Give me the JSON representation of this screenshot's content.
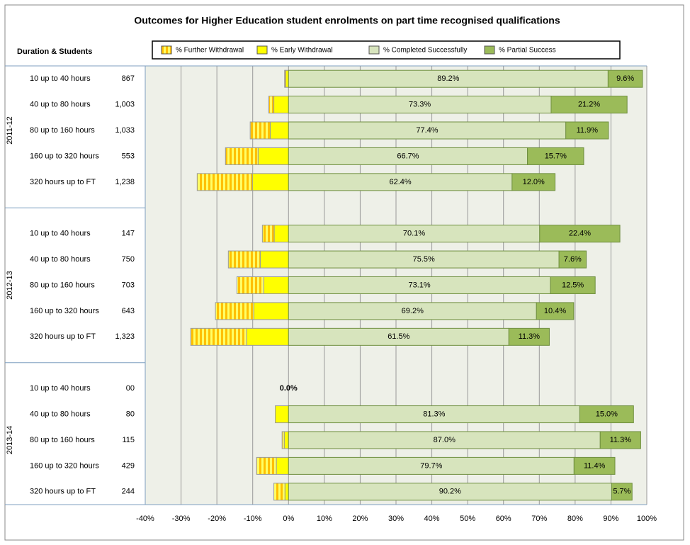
{
  "chart_data": {
    "type": "diverging-stacked-bar",
    "title": "Outcomes for Higher Education student enrolments on part time recognised qualifications",
    "row_header": "Duration & Students",
    "groups": [
      {
        "name": "2011-12",
        "categories": [
          "10 up to 40 hours",
          "40 up to 80 hours",
          "80 up to 160 hours",
          "160 up to 320 hours",
          "320 hours up to FT"
        ],
        "students": [
          "867",
          "1,003",
          "1,033",
          "553",
          "1,238"
        ]
      },
      {
        "name": "2012-13",
        "categories": [
          "10 up to 40 hours",
          "40 up to 80 hours",
          "80 up to 160 hours",
          "160 up to 320 hours",
          "320 hours up to FT"
        ],
        "students": [
          "147",
          "750",
          "703",
          "643",
          "1,323"
        ]
      },
      {
        "name": "2013-14",
        "categories": [
          "10 up to 40 hours",
          "40 up to 80 hours",
          "80 up to 160 hours",
          "160 up to 320 hours",
          "320 hours up to FT"
        ],
        "students": [
          "00",
          "80",
          "115",
          "429",
          "244"
        ]
      }
    ],
    "series": [
      {
        "name": "% Further Withdrawal",
        "color": "#FFC000",
        "pattern": "stripes",
        "values": [
          -0.3,
          -1.4,
          -5.6,
          -9.1,
          -15.4,
          -3.3,
          -8.9,
          -7.5,
          -10.7,
          -15.6,
          0,
          0,
          -0.6,
          -5.5,
          -3.1
        ]
      },
      {
        "name": "% Early Withdrawal",
        "color": "#FFFF00",
        "values": [
          -0.8,
          -4.1,
          -5.1,
          -8.5,
          -10.1,
          -4.0,
          -7.9,
          -6.9,
          -9.7,
          -11.7,
          0,
          -3.7,
          -1.2,
          -3.4,
          -1.0
        ]
      },
      {
        "name": "% Completed Successfully",
        "color": "#D7E4BD",
        "values": [
          89.2,
          73.3,
          77.4,
          66.7,
          62.4,
          70.1,
          75.5,
          73.1,
          69.2,
          61.5,
          0.0,
          81.3,
          87.0,
          79.7,
          90.2
        ],
        "value_labels": [
          "89.2%",
          "73.3%",
          "77.4%",
          "66.7%",
          "62.4%",
          "70.1%",
          "75.5%",
          "73.1%",
          "69.2%",
          "61.5%",
          "0.0%",
          "81.3%",
          "87.0%",
          "79.7%",
          "90.2%"
        ]
      },
      {
        "name": "% Partial Success",
        "color": "#9BBB59",
        "values": [
          9.6,
          21.2,
          11.9,
          15.7,
          12.0,
          22.4,
          7.6,
          12.5,
          10.4,
          11.3,
          0,
          15.0,
          11.3,
          11.4,
          5.7
        ],
        "value_labels": [
          "9.6%",
          "21.2%",
          "11.9%",
          "15.7%",
          "12.0%",
          "22.4%",
          "7.6%",
          "12.5%",
          "10.4%",
          "11.3%",
          null,
          "15.0%",
          "11.3%",
          "11.4%",
          "5.7%"
        ]
      }
    ],
    "xlim": [
      -40,
      100
    ],
    "xticks": [
      {
        "value": -40,
        "label": "-40%"
      },
      {
        "value": -30,
        "label": "-30%"
      },
      {
        "value": -20,
        "label": "-20%"
      },
      {
        "value": -10,
        "label": "-10%"
      },
      {
        "value": 0,
        "label": "0%"
      },
      {
        "value": 10,
        "label": "10%"
      },
      {
        "value": 20,
        "label": "20%"
      },
      {
        "value": 30,
        "label": "30%"
      },
      {
        "value": 40,
        "label": "40%"
      },
      {
        "value": 50,
        "label": "50%"
      },
      {
        "value": 60,
        "label": "60%"
      },
      {
        "value": 70,
        "label": "70%"
      },
      {
        "value": 80,
        "label": "80%"
      },
      {
        "value": 90,
        "label": "90%"
      },
      {
        "value": 100,
        "label": "100%"
      }
    ],
    "grid": true,
    "legend": "top"
  }
}
